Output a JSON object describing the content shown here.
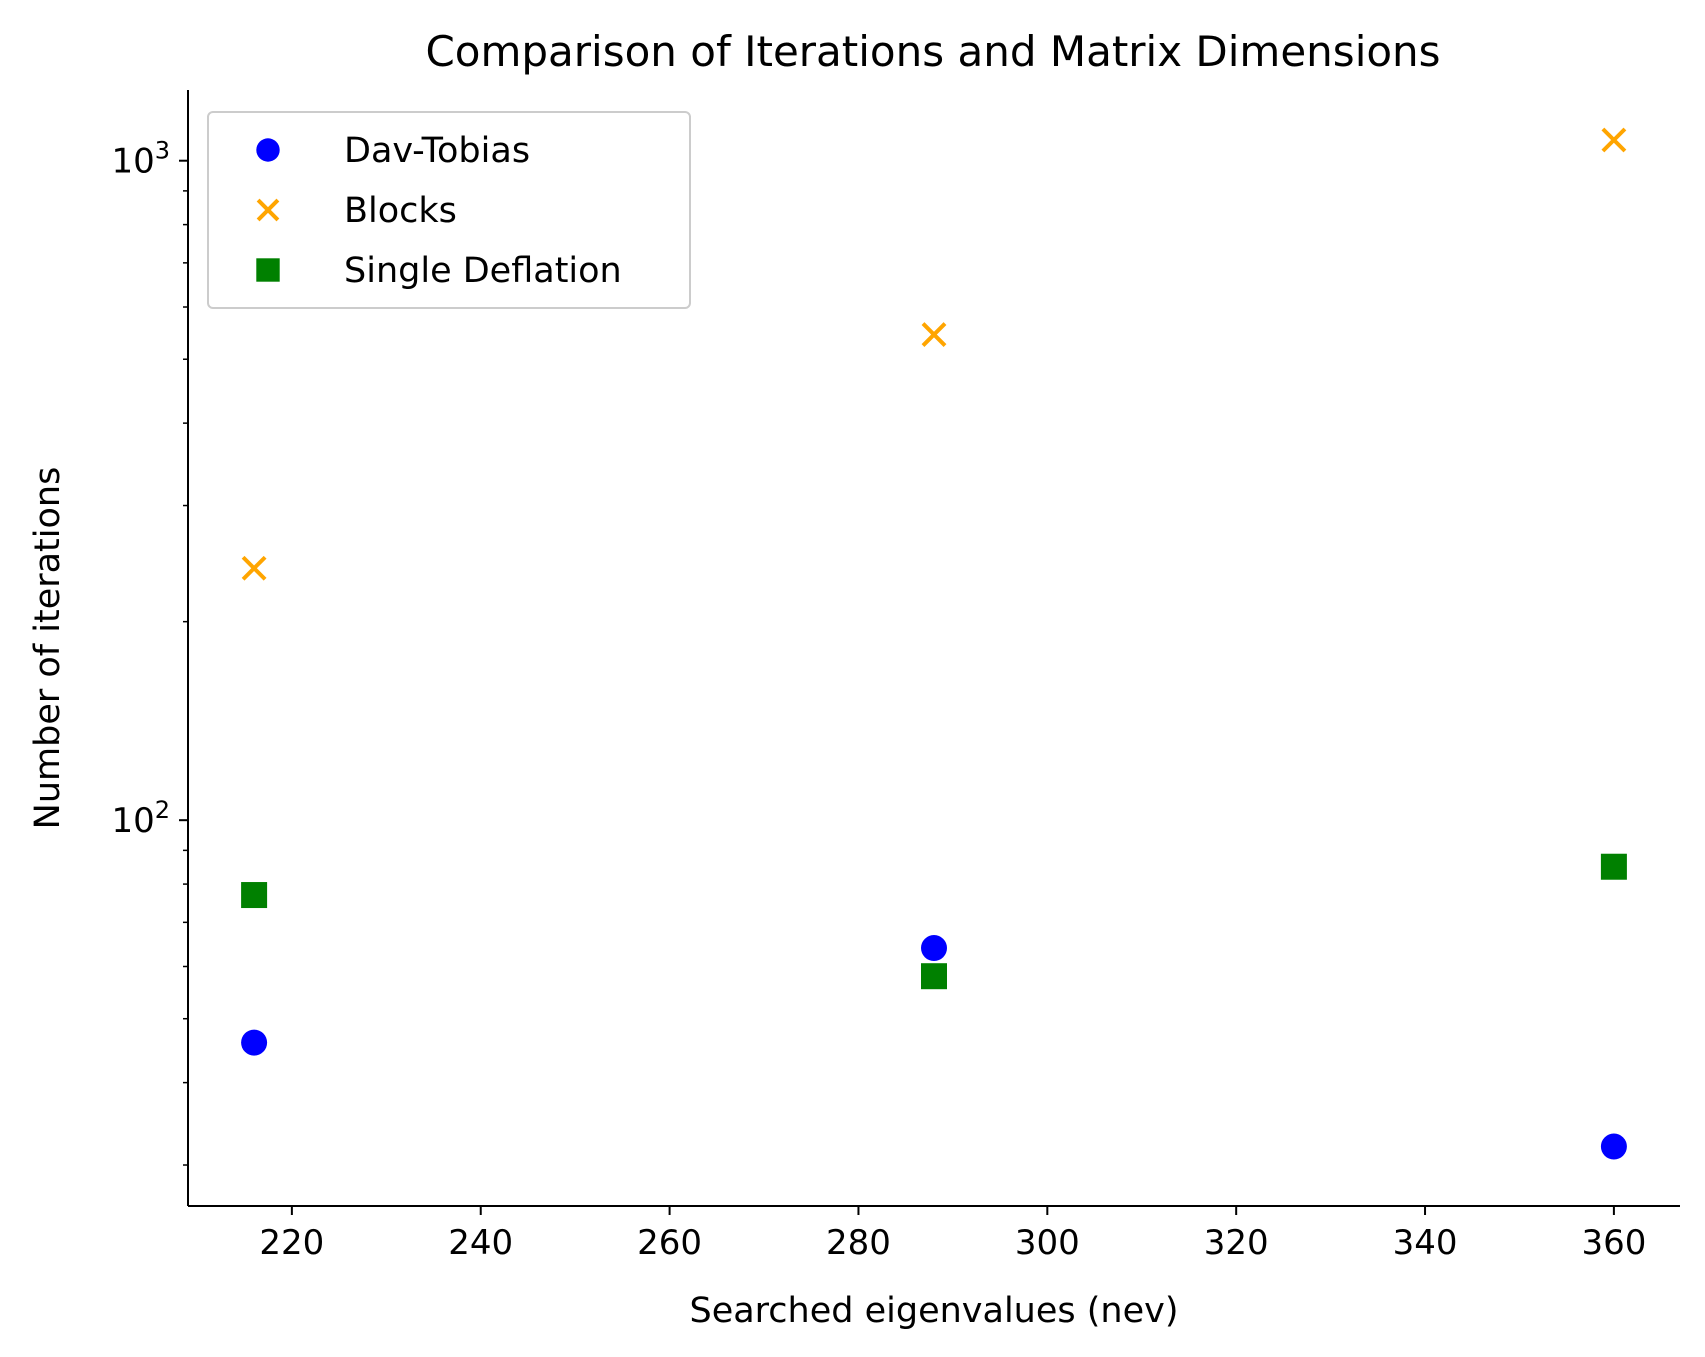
{
  "chart_data": {
    "type": "scatter",
    "title": "Comparison of Iterations and Matrix Dimensions",
    "xlabel": "Searched eigenvalues (nev)",
    "ylabel": "Number of iterations",
    "xlim": [
      209,
      367
    ],
    "ylim": [
      26,
      1280
    ],
    "yscale": "log",
    "x_ticks": [
      220,
      240,
      260,
      280,
      300,
      320,
      340,
      360
    ],
    "y_major_ticks": [
      {
        "value": 100,
        "base": "10",
        "exp": "2"
      },
      {
        "value": 1000,
        "base": "10",
        "exp": "3"
      }
    ],
    "y_minor_ticks": [
      30,
      40,
      50,
      60,
      70,
      80,
      90,
      200,
      300,
      400,
      500,
      600,
      700,
      800,
      900
    ],
    "grid": false,
    "legend_position": "top-left",
    "series": [
      {
        "name": "Dav-Tobias",
        "marker": "circle",
        "color": "#0000ff",
        "points": [
          {
            "x": 216,
            "y": 46
          },
          {
            "x": 288,
            "y": 64
          },
          {
            "x": 360,
            "y": 32
          }
        ]
      },
      {
        "name": "Blocks",
        "marker": "x",
        "color": "#ffa500",
        "points": [
          {
            "x": 216,
            "y": 241
          },
          {
            "x": 288,
            "y": 545
          },
          {
            "x": 360,
            "y": 1075
          }
        ]
      },
      {
        "name": "Single Deflation",
        "marker": "square",
        "color": "#008000",
        "points": [
          {
            "x": 216,
            "y": 77
          },
          {
            "x": 288,
            "y": 58
          },
          {
            "x": 360,
            "y": 85
          }
        ]
      }
    ]
  }
}
